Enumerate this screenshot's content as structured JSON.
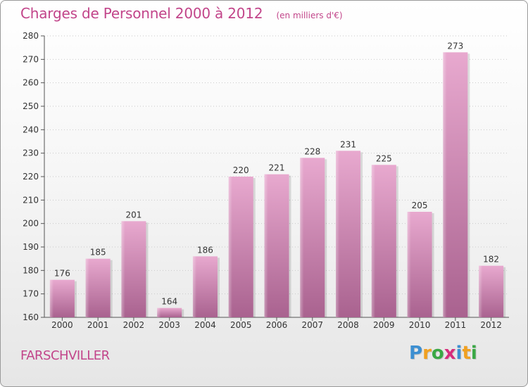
{
  "title": "Charges de Personnel 2000 à 2012",
  "subtitle": "(en milliers d'€)",
  "town": "FARSCHVILLER",
  "logo": {
    "letters": [
      "P",
      "r",
      "o",
      "x",
      "i",
      "t",
      "i"
    ],
    "colors": [
      "#3d8fd1",
      "#f0a020",
      "#3aa845",
      "#d62d7c",
      "#3d8fd1",
      "#f0a020",
      "#3aa845"
    ]
  },
  "colors": {
    "bar_top": "#e8a9cf",
    "bar_bottom": "#a9628f",
    "text_accent": "#c2458a"
  },
  "chart_data": {
    "type": "bar",
    "title": "Charges de Personnel 2000 à 2012",
    "subtitle": "(en milliers d'€)",
    "categories": [
      "2000",
      "2001",
      "2002",
      "2003",
      "2004",
      "2005",
      "2006",
      "2007",
      "2008",
      "2009",
      "2010",
      "2011",
      "2012"
    ],
    "values": [
      176,
      185,
      201,
      164,
      186,
      220,
      221,
      228,
      231,
      225,
      205,
      273,
      182
    ],
    "ylim": [
      160,
      280
    ],
    "yticks": [
      160,
      170,
      180,
      190,
      200,
      210,
      220,
      230,
      240,
      250,
      260,
      270,
      280
    ],
    "xlabel": "",
    "ylabel": "",
    "grid": "horizontal-dotted",
    "legend": "none"
  }
}
